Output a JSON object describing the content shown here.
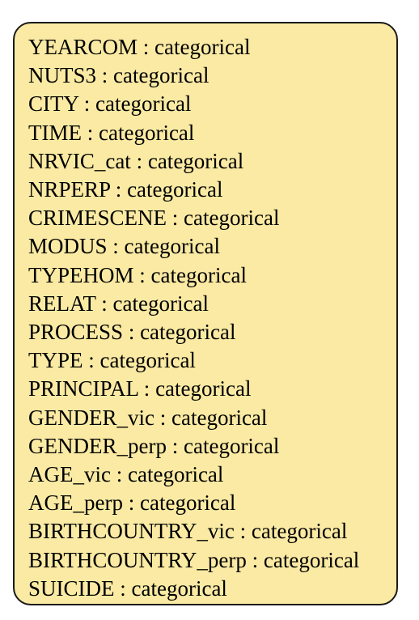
{
  "node": {
    "fields": [
      {
        "name": "YEARCOM",
        "type": "categorical"
      },
      {
        "name": "NUTS3",
        "type": "categorical"
      },
      {
        "name": "CITY",
        "type": "categorical"
      },
      {
        "name": "TIME",
        "type": "categorical"
      },
      {
        "name": "NRVIC_cat",
        "type": "categorical"
      },
      {
        "name": "NRPERP",
        "type": "categorical"
      },
      {
        "name": "CRIMESCENE",
        "type": "categorical"
      },
      {
        "name": "MODUS",
        "type": "categorical"
      },
      {
        "name": "TYPEHOM",
        "type": "categorical"
      },
      {
        "name": "RELAT",
        "type": "categorical"
      },
      {
        "name": "PROCESS",
        "type": "categorical"
      },
      {
        "name": "TYPE",
        "type": "categorical"
      },
      {
        "name": "PRINCIPAL",
        "type": "categorical"
      },
      {
        "name": "GENDER_vic",
        "type": "categorical"
      },
      {
        "name": "GENDER_perp",
        "type": "categorical"
      },
      {
        "name": "AGE_vic",
        "type": "categorical"
      },
      {
        "name": "AGE_perp",
        "type": "categorical"
      },
      {
        "name": "BIRTHCOUNTRY_vic",
        "type": "categorical"
      },
      {
        "name": "BIRTHCOUNTRY_perp",
        "type": "categorical"
      },
      {
        "name": "SUICIDE",
        "type": "categorical"
      }
    ],
    "separator": " : ",
    "fill_color": "#faeaa3",
    "border_color": "#1a1a1a"
  }
}
